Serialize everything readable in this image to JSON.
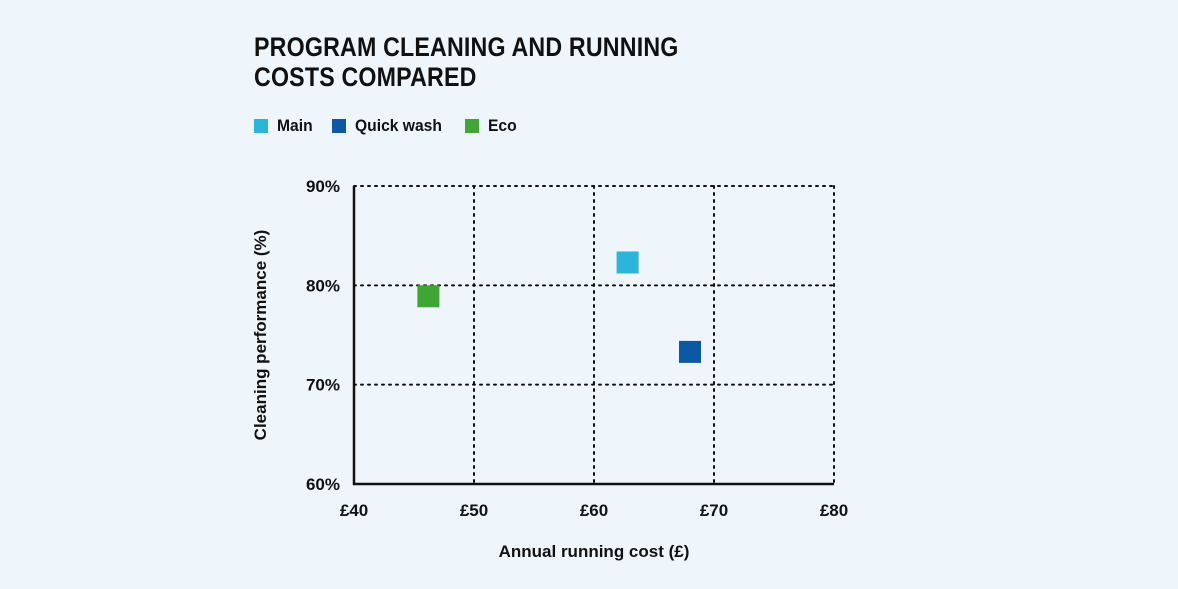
{
  "chart_data": {
    "type": "scatter",
    "title_lines": [
      "PROGRAM CLEANING AND RUNNING",
      "COSTS COMPARED"
    ],
    "xlabel": "Annual running cost (£)",
    "ylabel": "Cleaning performance (%)",
    "xlim": [
      40,
      80
    ],
    "ylim": [
      60,
      90
    ],
    "x_ticks": [
      40,
      50,
      60,
      70,
      80
    ],
    "x_tick_labels": [
      "£40",
      "£50",
      "£60",
      "£70",
      "£80"
    ],
    "y_ticks": [
      60,
      70,
      80,
      90
    ],
    "y_tick_labels": [
      "60%",
      "70%",
      "80%",
      "90%"
    ],
    "grid": true,
    "legend_placement": "top-left",
    "series": [
      {
        "name": "Main",
        "color": "#2cb5da",
        "points": [
          {
            "x": 62.8,
            "y": 82.3
          }
        ]
      },
      {
        "name": "Quick wash",
        "color": "#0d58a3",
        "points": [
          {
            "x": 68.0,
            "y": 73.3
          }
        ]
      },
      {
        "name": "Eco",
        "color": "#3fa535",
        "points": [
          {
            "x": 46.2,
            "y": 78.9
          }
        ]
      }
    ]
  }
}
